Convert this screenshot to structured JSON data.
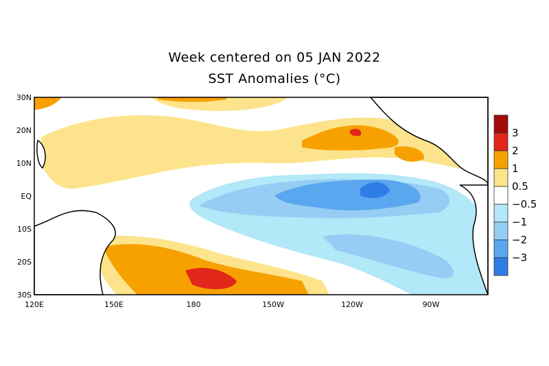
{
  "title": "Week centered on 05 JAN 2022",
  "subtitle": "SST Anomalies (°C)",
  "map": {
    "region": "Tropical Pacific",
    "lat_labels": [
      "30N",
      "20N",
      "10N",
      "EQ",
      "10S",
      "20S",
      "30S"
    ],
    "lon_labels": [
      "120E",
      "150E",
      "180",
      "150W",
      "120W",
      "90W"
    ]
  },
  "colorbar": {
    "labels": [
      "3",
      "2",
      "1",
      "0.5",
      "−0.5",
      "−1",
      "−2",
      "−3"
    ],
    "colors": [
      "#a50a0a",
      "#e2261a",
      "#f7a100",
      "#fde48c",
      "#ffffff",
      "#b2e8f8",
      "#96cdf4",
      "#5aa6ef",
      "#2e7ce6"
    ]
  }
}
